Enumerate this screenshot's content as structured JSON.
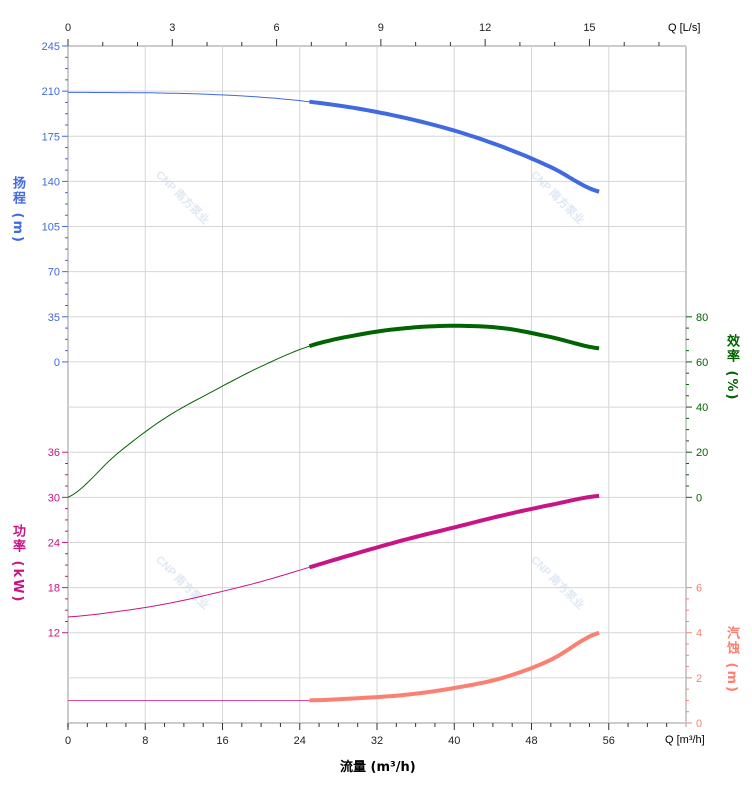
{
  "chart_data": {
    "type": "line",
    "xlabel": "流量 (m³/h)",
    "x_unit_label": "Q [m³/h]",
    "x2_unit_label": "Q [L/s]",
    "xlim": [
      0,
      64
    ],
    "x_ticks": [
      0,
      8,
      16,
      24,
      32,
      40,
      48,
      56
    ],
    "x2_ticks": [
      0,
      3,
      6,
      9,
      12,
      15
    ],
    "grid": true,
    "watermark": "CNP 南方泵业",
    "axes": {
      "head": {
        "label": "扬程",
        "unit": "(m)",
        "ticks": [
          0,
          35,
          70,
          105,
          140,
          175,
          210,
          245
        ],
        "color": "#4169e1"
      },
      "power": {
        "label": "功率",
        "unit": "(kW)",
        "ticks": [
          12,
          18,
          24,
          30,
          36
        ],
        "color": "#c71585"
      },
      "efficiency": {
        "label": "效率",
        "unit": "(%)",
        "ticks": [
          0,
          20,
          40,
          60,
          80
        ],
        "color": "#006400"
      },
      "npsh": {
        "label": "汽蚀",
        "unit": "(m)",
        "ticks": [
          0,
          2,
          4,
          6
        ],
        "color": "#fa8072"
      }
    },
    "operating_range": [
      25,
      55
    ],
    "series": [
      {
        "key": "head",
        "x": [
          0,
          5,
          10,
          15,
          20,
          25,
          30,
          35,
          40,
          45,
          50,
          55
        ],
        "y": [
          209,
          208.9,
          208.5,
          207.4,
          205.3,
          201.8,
          196.5,
          189.1,
          179.4,
          166.8,
          151.1,
          132
        ]
      },
      {
        "key": "efficiency",
        "x": [
          0,
          5,
          10,
          15,
          20,
          25,
          30,
          35,
          40,
          45,
          50,
          55
        ],
        "y": [
          0,
          19,
          35,
          47,
          58,
          67,
          72,
          75,
          76,
          75,
          71,
          66
        ]
      },
      {
        "key": "power",
        "x": [
          0,
          5,
          10,
          15,
          20,
          25,
          30,
          35,
          40,
          45,
          50,
          55
        ],
        "y": [
          14.1,
          14.8,
          15.8,
          17.2,
          18.8,
          20.7,
          22.6,
          24.4,
          26,
          27.6,
          29,
          30.2
        ]
      },
      {
        "key": "npsh",
        "x": [
          0,
          5,
          10,
          15,
          20,
          25,
          30,
          35,
          40,
          45,
          50,
          55
        ],
        "y": [
          1,
          1,
          1,
          1,
          1,
          1,
          1.1,
          1.25,
          1.55,
          2.0,
          2.8,
          4.0
        ]
      }
    ]
  }
}
